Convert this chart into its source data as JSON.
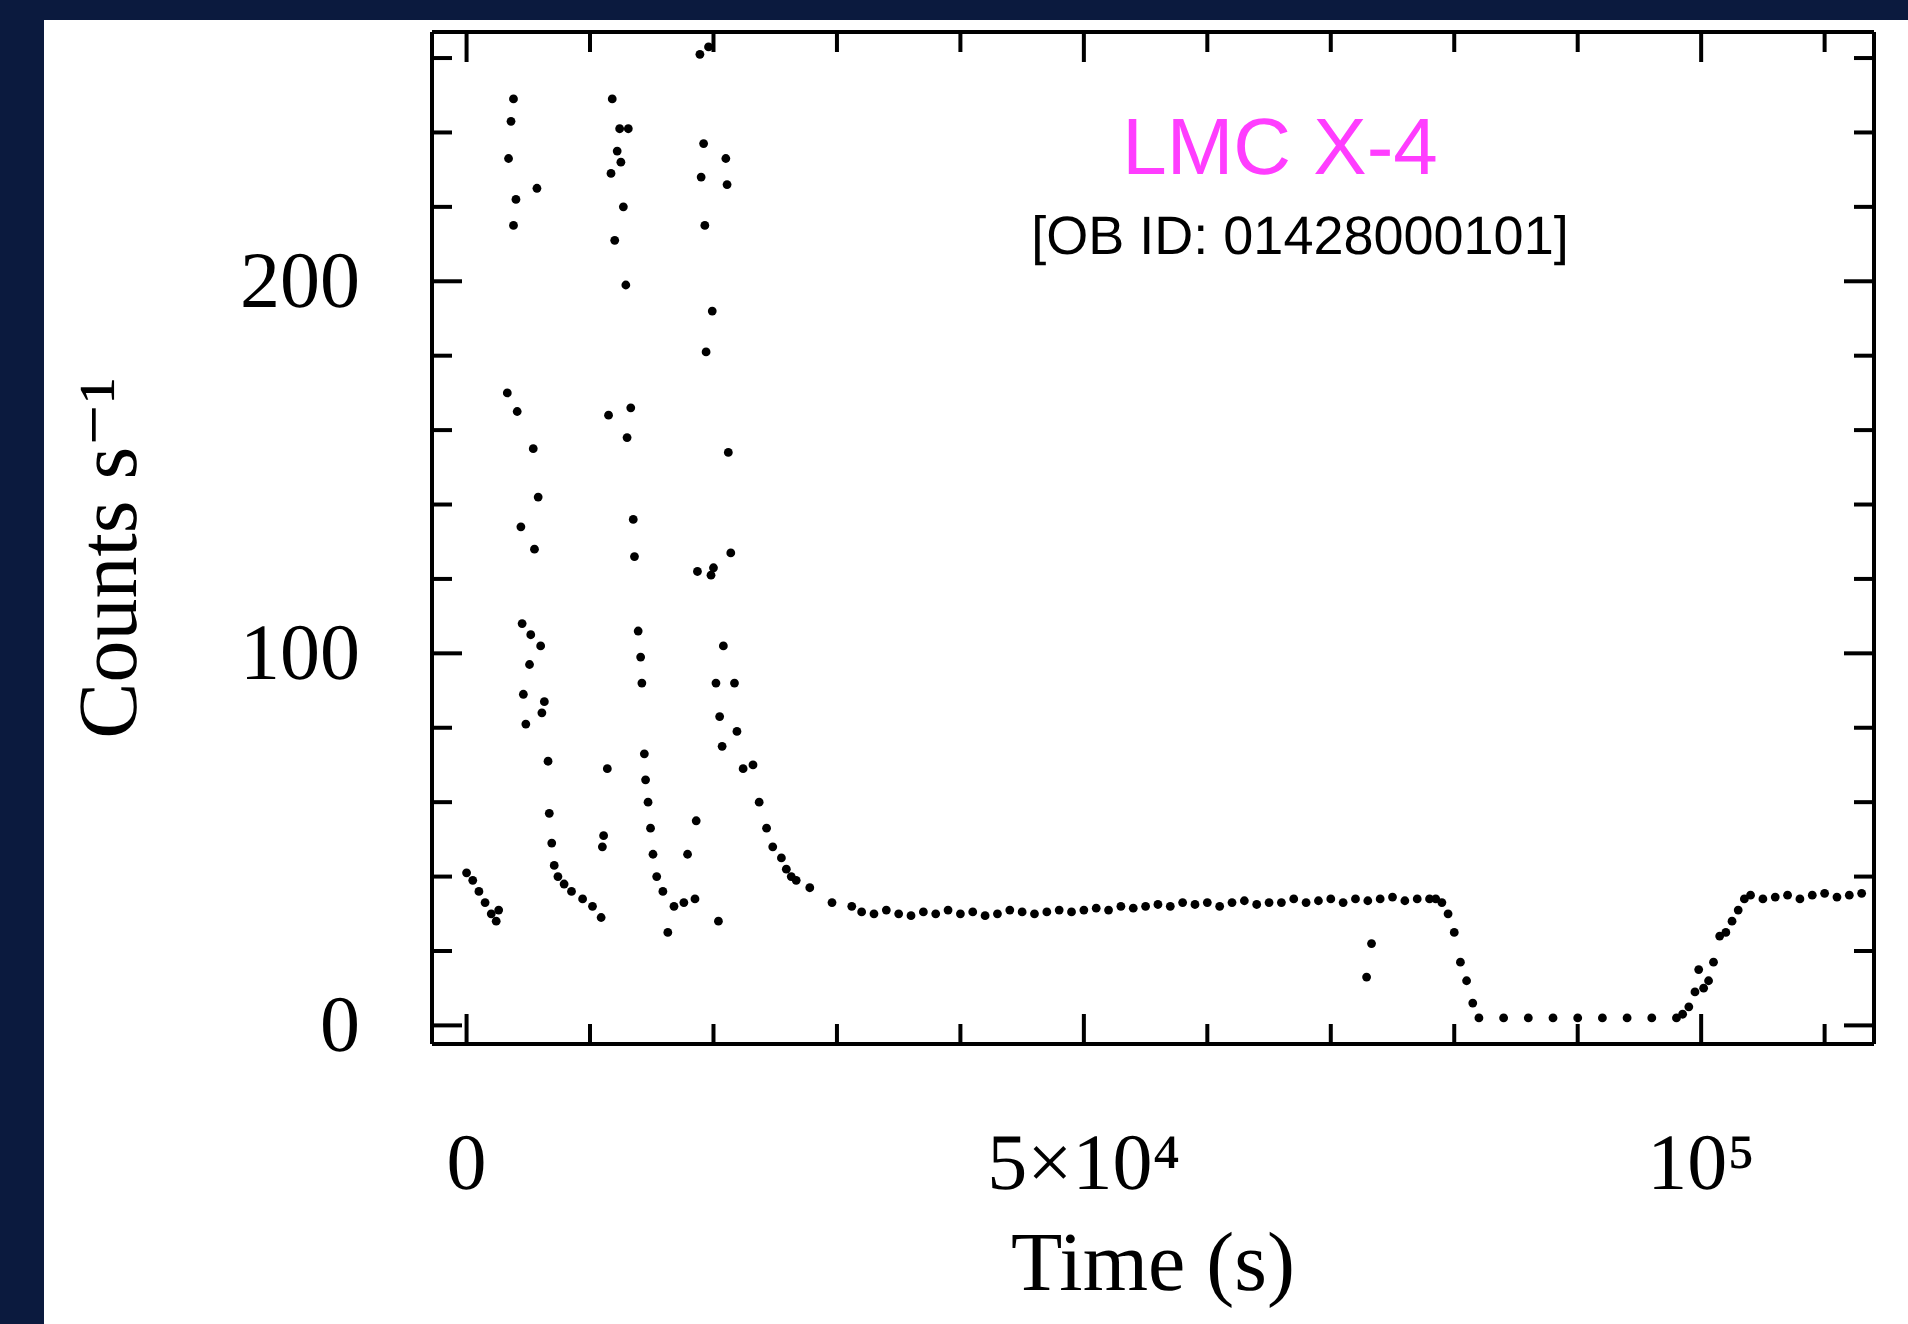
{
  "chart_data": {
    "type": "scatter",
    "title": "LMC X-4",
    "subtitle": "[OB ID: 01428000101]",
    "xlabel": "Time (s)",
    "ylabel": "Counts s⁻¹",
    "xlim": [
      -2800,
      114000
    ],
    "ylim": [
      -5,
      267
    ],
    "xticks": [
      0,
      {
        "value": 10000,
        "label": null
      },
      {
        "value": 20000,
        "label": null
      },
      {
        "value": 30000,
        "label": null
      },
      {
        "value": 40000,
        "label": null
      },
      {
        "value": 50000,
        "label": "5×10⁴"
      },
      {
        "value": 60000,
        "label": null
      },
      {
        "value": 70000,
        "label": null
      },
      {
        "value": 80000,
        "label": null
      },
      {
        "value": 90000,
        "label": null
      },
      {
        "value": 100000,
        "label": "10⁵"
      },
      {
        "value": 110000,
        "label": null
      }
    ],
    "yticks": [
      0,
      {
        "value": 20,
        "label": null
      },
      {
        "value": 40,
        "label": null
      },
      {
        "value": 60,
        "label": null
      },
      {
        "value": 80,
        "label": null
      },
      100,
      {
        "value": 120,
        "label": null
      },
      {
        "value": 140,
        "label": null
      },
      {
        "value": 160,
        "label": null
      },
      {
        "value": 180,
        "label": null
      },
      200,
      {
        "value": 220,
        "label": null
      },
      {
        "value": 240,
        "label": null
      },
      {
        "value": 260,
        "label": null
      }
    ],
    "marker": "circle",
    "series": [
      {
        "color": "#000000",
        "x": [
          0,
          500,
          1000,
          1500,
          2000,
          2400,
          2600,
          3800,
          3600,
          3400,
          4000,
          3800,
          5700,
          3300,
          4100,
          5400,
          5800,
          4400,
          5500,
          4500,
          5200,
          6000,
          5100,
          4600,
          6300,
          4800,
          6100,
          6600,
          6700,
          6900,
          7100,
          7400,
          7900,
          8500,
          9400,
          10200,
          10900,
          11000,
          11100,
          11400,
          11800,
          12400,
          13100,
          12200,
          11700,
          12500,
          12700,
          12000,
          12900,
          11500,
          13300,
          13000,
          13500,
          13600,
          13900,
          14100,
          14200,
          14400,
          14500,
          14700,
          14900,
          15100,
          15400,
          15900,
          16800,
          17600,
          18500,
          16300,
          17900,
          18600,
          18900,
          19600,
          19200,
          19000,
          21000,
          21100,
          19300,
          19900,
          19400,
          21200,
          21400,
          18700,
          19800,
          20000,
          20800,
          20200,
          21700,
          20500,
          21900,
          20700,
          20400,
          22400,
          23200,
          23700,
          24300,
          24800,
          25500,
          25900,
          26300,
          26700,
          27800,
          29600,
          31200,
          32000,
          33000,
          34000,
          35000,
          36000,
          37000,
          38000,
          39000,
          40000,
          41000,
          42000,
          43000,
          44000,
          45000,
          46000,
          47000,
          48000,
          49000,
          50000,
          51000,
          52000,
          53000,
          54000,
          55000,
          56000,
          57000,
          58000,
          59000,
          60000,
          61000,
          62000,
          63000,
          64000,
          65000,
          66000,
          67000,
          68000,
          69000,
          70000,
          71000,
          72000,
          73000,
          74000,
          75000,
          76000,
          77000,
          78000,
          72900,
          73300,
          78500,
          79000,
          79500,
          80000,
          80500,
          81000,
          81500,
          82000,
          84000,
          86000,
          88000,
          90000,
          92000,
          94000,
          96000,
          98000,
          98500,
          99000,
          99500,
          99800,
          100200,
          100600,
          101000,
          101500,
          102000,
          102500,
          103000,
          103500,
          104000,
          105000,
          106000,
          107000,
          108000,
          109000,
          110000,
          111000,
          112000,
          113000
        ],
        "values": [
          41,
          39,
          36,
          33,
          30,
          28,
          31,
          249,
          243,
          233,
          222,
          215,
          225,
          170,
          165,
          155,
          142,
          134,
          128,
          108,
          105,
          102,
          97,
          89,
          87,
          81,
          84,
          71,
          57,
          49,
          43,
          40,
          38,
          36,
          34,
          32,
          29,
          48,
          51,
          69,
          249,
          241,
          241,
          235,
          229,
          232,
          220,
          211,
          199,
          164,
          166,
          158,
          136,
          126,
          106,
          99,
          92,
          73,
          66,
          60,
          53,
          46,
          40,
          36,
          32,
          33,
          34,
          25,
          46,
          55,
          261,
          263,
          237,
          228,
          233,
          226,
          215,
          192,
          181,
          154,
          127,
          122,
          121,
          123,
          102,
          92,
          92,
          83,
          79,
          75,
          28,
          69,
          70,
          60,
          53,
          48,
          45,
          42,
          40,
          39,
          37,
          33,
          32,
          30.5,
          30,
          31,
          30,
          29.5,
          30.5,
          30,
          31,
          30,
          30.5,
          29.5,
          30,
          31,
          30.5,
          30,
          30.5,
          31,
          30.5,
          31,
          31.5,
          31,
          32,
          31.5,
          32,
          32.5,
          32,
          33,
          32.5,
          33,
          32,
          33,
          33.5,
          32.5,
          33,
          33,
          34,
          33,
          33.5,
          34,
          33,
          34,
          33.5,
          34,
          34.5,
          33.5,
          34,
          34,
          13,
          22,
          34,
          33,
          30,
          25,
          17,
          12,
          6,
          2,
          2,
          2,
          2,
          2,
          2,
          2,
          2,
          2,
          3,
          5,
          9,
          15,
          10,
          12,
          17,
          24,
          25,
          28,
          31,
          34,
          35,
          34,
          34.5,
          35,
          34,
          35,
          35.5,
          34.5,
          35,
          35.5
        ]
      }
    ]
  }
}
